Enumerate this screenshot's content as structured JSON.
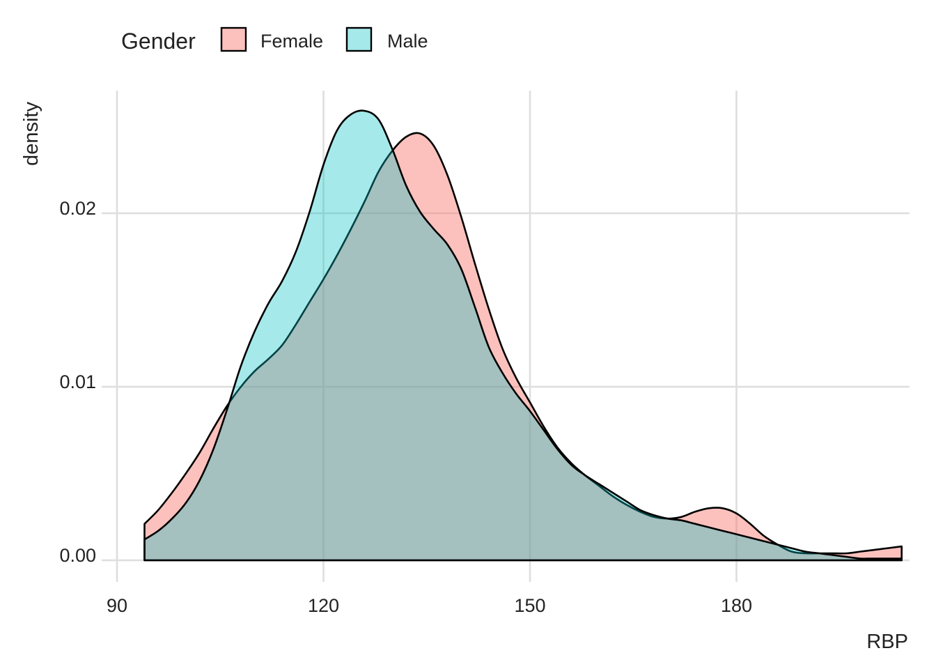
{
  "chart_data": {
    "type": "area",
    "subtype": "density",
    "title": "",
    "xlabel": "RBP",
    "ylabel": "density",
    "xlim": [
      90,
      204
    ],
    "ylim": [
      0,
      0.027
    ],
    "x_ticks": [
      90,
      120,
      150,
      180
    ],
    "x_tick_labels": [
      "90",
      "120",
      "150",
      "180"
    ],
    "y_ticks": [
      0.0,
      0.01,
      0.02
    ],
    "y_tick_labels": [
      "0.00",
      "0.01",
      "0.02"
    ],
    "grid": true,
    "legend": {
      "title": "Gender",
      "position": "top-left"
    },
    "series": [
      {
        "name": "Female",
        "color": "#F8766D",
        "alpha": 0.45,
        "x": [
          94,
          96,
          98,
          100,
          102,
          104,
          106,
          108,
          110,
          112,
          114,
          116,
          118,
          120,
          122,
          124,
          126,
          128,
          130,
          132,
          134,
          136,
          138,
          140,
          142,
          144,
          146,
          148,
          150,
          152,
          154,
          156,
          158,
          160,
          162,
          164,
          166,
          168,
          170,
          172,
          174,
          176,
          178,
          180,
          182,
          184,
          186,
          188,
          190,
          192,
          194,
          196,
          198,
          200,
          204
        ],
        "y": [
          0.0021,
          0.0029,
          0.0039,
          0.005,
          0.0062,
          0.0076,
          0.0089,
          0.01,
          0.0109,
          0.0116,
          0.0124,
          0.0136,
          0.0149,
          0.0162,
          0.0176,
          0.0191,
          0.0207,
          0.0224,
          0.0236,
          0.0244,
          0.0246,
          0.0239,
          0.0222,
          0.0198,
          0.0171,
          0.0145,
          0.0122,
          0.0105,
          0.0091,
          0.0077,
          0.0065,
          0.0056,
          0.0049,
          0.0043,
          0.0037,
          0.0032,
          0.0028,
          0.0025,
          0.0024,
          0.0025,
          0.0028,
          0.003,
          0.003,
          0.0027,
          0.0021,
          0.0014,
          0.0009,
          0.0005,
          0.0004,
          0.0004,
          0.0004,
          0.0004,
          0.0005,
          0.0006,
          0.0008
        ]
      },
      {
        "name": "Male",
        "color": "#00BFC4",
        "alpha": 0.35,
        "x": [
          94,
          96,
          98,
          100,
          102,
          104,
          106,
          108,
          110,
          112,
          114,
          116,
          118,
          120,
          122,
          124,
          126,
          128,
          130,
          132,
          134,
          136,
          138,
          140,
          142,
          144,
          146,
          148,
          150,
          152,
          154,
          156,
          158,
          160,
          162,
          164,
          166,
          168,
          170,
          172,
          174,
          176,
          178,
          180,
          182,
          184,
          186,
          188,
          190,
          192,
          194,
          196,
          198,
          200,
          204
        ],
        "y": [
          0.0012,
          0.0017,
          0.0024,
          0.0033,
          0.0046,
          0.0064,
          0.0087,
          0.0112,
          0.0132,
          0.0148,
          0.0161,
          0.0178,
          0.0201,
          0.0228,
          0.0248,
          0.0257,
          0.0259,
          0.0254,
          0.0237,
          0.0216,
          0.0201,
          0.0191,
          0.0182,
          0.0168,
          0.0146,
          0.0123,
          0.0108,
          0.0096,
          0.0086,
          0.0075,
          0.0064,
          0.0055,
          0.0049,
          0.0044,
          0.0039,
          0.0034,
          0.0029,
          0.0026,
          0.0024,
          0.0023,
          0.0021,
          0.0019,
          0.0017,
          0.0015,
          0.0013,
          0.0011,
          0.0009,
          0.0007,
          0.0005,
          0.0004,
          0.0003,
          0.0002,
          0.0001,
          0.0001,
          0.0001
        ]
      }
    ]
  }
}
